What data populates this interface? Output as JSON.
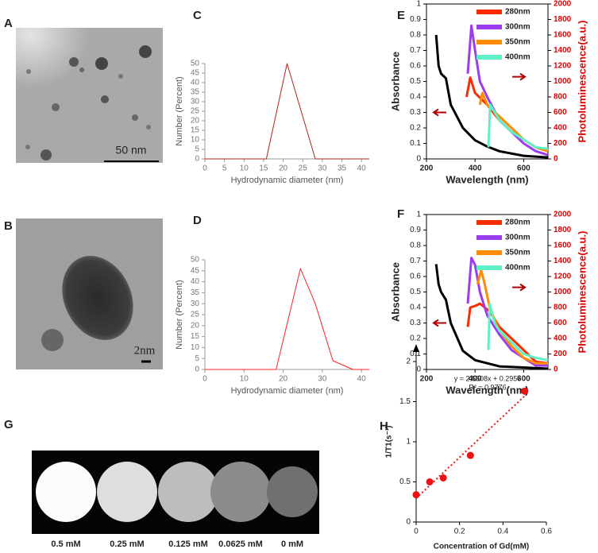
{
  "panels": [
    {
      "label": "A",
      "scale_bar": "50 nm"
    },
    {
      "label": "B",
      "scale_bar": "2nm"
    },
    {
      "label": "G",
      "samples": [
        "0.5 mM",
        "0.25 mM",
        "0.125 mM",
        "0.0625 mM",
        "0 mM"
      ]
    }
  ],
  "chart_data": [
    {
      "type": "line",
      "panel_label": "C",
      "x_label": "Hydrodynamic diameter (nm)",
      "y_label": "Number (Percent)",
      "xlim": [
        0,
        42
      ],
      "xticks": [
        0,
        5,
        10,
        15,
        20,
        25,
        30,
        35,
        40
      ],
      "ylim": [
        0,
        50
      ],
      "yticks": [
        0,
        5,
        10,
        15,
        20,
        25,
        30,
        35,
        40,
        45,
        50
      ],
      "series": [
        {
          "color": "#b22222",
          "x": [
            0,
            15.7,
            21,
            28.2,
            42
          ],
          "values": [
            0,
            0,
            50,
            0,
            0
          ]
        }
      ]
    },
    {
      "type": "line",
      "panel_label": "D",
      "x_label": "Hydrodynamic diameter (nm)",
      "y_label": "Number (Percent)",
      "xlim": [
        0,
        42
      ],
      "xticks": [
        0,
        10,
        20,
        30,
        40
      ],
      "ylim": [
        0,
        50
      ],
      "yticks": [
        0,
        5,
        10,
        15,
        20,
        25,
        30,
        35,
        40,
        45,
        50
      ],
      "series": [
        {
          "color": "#ff2020",
          "x": [
            0,
            18.2,
            24.4,
            28.2,
            32.7,
            37.8,
            42
          ],
          "values": [
            0,
            0,
            46,
            30,
            4,
            0,
            0
          ]
        }
      ]
    },
    {
      "type": "line",
      "panel_label": "E",
      "x_label": "Wavelength (nm)",
      "y_label": "Absorbance",
      "y2_label": "Photoluminescence(a.u.)",
      "xlim": [
        200,
        700
      ],
      "xticks": [
        200,
        400,
        600
      ],
      "ylim": [
        0,
        1
      ],
      "yticks": [
        0,
        0.1,
        0.2,
        0.3,
        0.4,
        0.5,
        0.6,
        0.7,
        0.8,
        0.9,
        1
      ],
      "y2lim": [
        0,
        2000
      ],
      "y2ticks": [
        0,
        200,
        400,
        600,
        800,
        1000,
        1200,
        1400,
        1600,
        1800,
        2000
      ],
      "series": [
        {
          "color": "#000000",
          "x": [
            240,
            250,
            260,
            280,
            300,
            350,
            400,
            450,
            500,
            600,
            700
          ],
          "values": [
            0.8,
            0.6,
            0.55,
            0.52,
            0.35,
            0.2,
            0.12,
            0.08,
            0.05,
            0.02,
            0.01
          ]
        },
        {
          "name": "280nm",
          "color": "#ff2a00",
          "axis": "y2",
          "x": [
            365,
            380,
            400,
            450,
            500,
            550,
            600,
            650,
            700
          ],
          "values": [
            800,
            1050,
            850,
            700,
            500,
            350,
            250,
            150,
            100
          ]
        },
        {
          "name": "300nm",
          "color": "#9b3cf0",
          "axis": "y2",
          "x": [
            370,
            385,
            400,
            420,
            450,
            500,
            550,
            600,
            650,
            700
          ],
          "values": [
            1100,
            1720,
            1400,
            1000,
            800,
            500,
            350,
            200,
            100,
            50
          ]
        },
        {
          "name": "350nm",
          "color": "#ff8c00",
          "axis": "y2",
          "x": [
            420,
            430,
            450,
            500,
            550,
            600,
            650,
            700
          ],
          "values": [
            700,
            850,
            700,
            550,
            400,
            250,
            150,
            100
          ]
        },
        {
          "name": "400nm",
          "color": "#5ff0c8",
          "axis": "y2",
          "x": [
            455,
            462,
            500,
            550,
            600,
            650,
            700
          ],
          "values": [
            150,
            700,
            500,
            350,
            250,
            150,
            130
          ]
        }
      ]
    },
    {
      "type": "line",
      "panel_label": "F",
      "x_label": "Wavelength (nm)",
      "y_label": "Absorbance",
      "y2_label": "Photoluminescence(a.u.)",
      "xlim": [
        200,
        700
      ],
      "xticks": [
        200,
        400,
        600
      ],
      "ylim": [
        0,
        1
      ],
      "yticks": [
        0,
        0.1,
        0.2,
        0.3,
        0.4,
        0.5,
        0.6,
        0.7,
        0.8,
        0.9,
        1
      ],
      "y2lim": [
        0,
        2000
      ],
      "y2ticks": [
        0,
        200,
        400,
        600,
        800,
        1000,
        1200,
        1400,
        1600,
        1800,
        2000
      ],
      "series": [
        {
          "color": "#000000",
          "x": [
            240,
            250,
            260,
            280,
            300,
            350,
            400,
            500,
            700
          ],
          "values": [
            0.68,
            0.55,
            0.5,
            0.45,
            0.3,
            0.12,
            0.06,
            0.02,
            0.005
          ]
        },
        {
          "name": "280nm",
          "color": "#ff2a00",
          "axis": "y2",
          "x": [
            370,
            380,
            400,
            420,
            440,
            460,
            500,
            550,
            600,
            650,
            700
          ],
          "values": [
            550,
            800,
            820,
            850,
            800,
            750,
            550,
            400,
            250,
            100,
            80
          ]
        },
        {
          "name": "300nm",
          "color": "#9b3cf0",
          "axis": "y2",
          "x": [
            370,
            385,
            400,
            420,
            450,
            500,
            550,
            600,
            650,
            700
          ],
          "values": [
            850,
            1440,
            1350,
            1000,
            700,
            450,
            250,
            150,
            50,
            50
          ]
        },
        {
          "name": "350nm",
          "color": "#ff8c00",
          "axis": "y2",
          "x": [
            410,
            425,
            440,
            460,
            500,
            550,
            600,
            650,
            700
          ],
          "values": [
            1100,
            1280,
            1100,
            800,
            500,
            300,
            150,
            80,
            80
          ]
        },
        {
          "name": "400nm",
          "color": "#5ff0c8",
          "axis": "y2",
          "x": [
            455,
            460,
            480,
            500,
            550,
            600,
            650,
            700
          ],
          "values": [
            250,
            850,
            600,
            500,
            350,
            200,
            150,
            120
          ]
        }
      ]
    },
    {
      "type": "scatter",
      "panel_label": "H",
      "x_label": "Concentration of Gd(mM)",
      "y_label": "1/T1(s⁻¹)",
      "xlim": [
        0,
        0.6
      ],
      "xticks": [
        0,
        0.2,
        0.4,
        0.6
      ],
      "ylim": [
        0,
        2
      ],
      "yticks": [
        0,
        0.5,
        1,
        1.5,
        2
      ],
      "color": "#ee1111",
      "x": [
        0,
        0.0625,
        0.125,
        0.25,
        0.5
      ],
      "values": [
        0.34,
        0.5,
        0.55,
        0.83,
        1.63
      ],
      "trendline": {
        "slope": 2.5508,
        "intercept": 0.2957
      },
      "equation": "y = 2.5508x + 0.2957",
      "r2": "R² = 0.9776"
    }
  ]
}
